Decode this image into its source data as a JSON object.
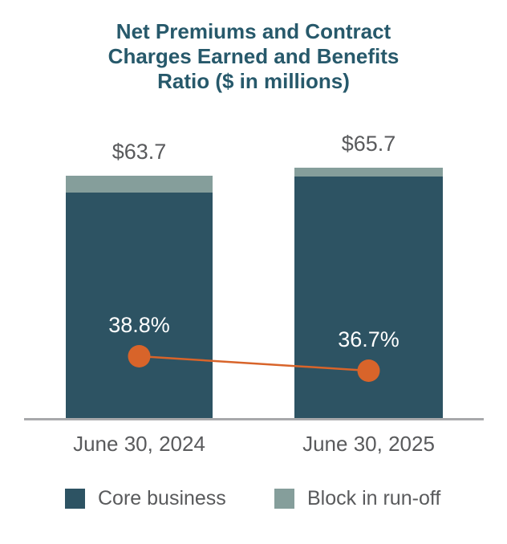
{
  "title": {
    "lines": [
      "Net Premiums and Contract",
      "Charges Earned and Benefits",
      "Ratio ($ in millions)"
    ]
  },
  "colors": {
    "core_business": "#2d5363",
    "block_in_runoff": "#859e9b",
    "ratio_line": "#d8642a",
    "title_text": "#27596b",
    "label_text": "#595a5c",
    "percent_text": "#ffffff",
    "axis_line": "#a8a9ab",
    "background": "#ffffff"
  },
  "legend": {
    "items": [
      {
        "label": "Core business",
        "color": "#2d5363"
      },
      {
        "label": "Block in run-off",
        "color": "#859e9b"
      }
    ]
  },
  "chart_data": {
    "type": "bar",
    "subtype": "stacked-column-with-line-markers",
    "title": "Net Premiums and Contract Charges Earned and Benefits Ratio ($ in millions)",
    "categories": [
      "June 30, 2024",
      "June 30, 2025"
    ],
    "series": [
      {
        "name": "Core business",
        "values": [
          59.3,
          63.4
        ],
        "color": "#2d5363"
      },
      {
        "name": "Block in run-off",
        "values": [
          4.4,
          2.3
        ],
        "color": "#859e9b"
      }
    ],
    "totals": [
      63.7,
      65.7
    ],
    "total_labels": [
      "$63.7",
      "$65.7"
    ],
    "line_series": {
      "name": "Benefits Ratio",
      "values": [
        38.8,
        36.7
      ],
      "labels": [
        "38.8%",
        "36.7%"
      ],
      "color": "#d8642a"
    },
    "ylim": [
      0,
      70
    ],
    "grid": false,
    "legend_position": "bottom"
  }
}
